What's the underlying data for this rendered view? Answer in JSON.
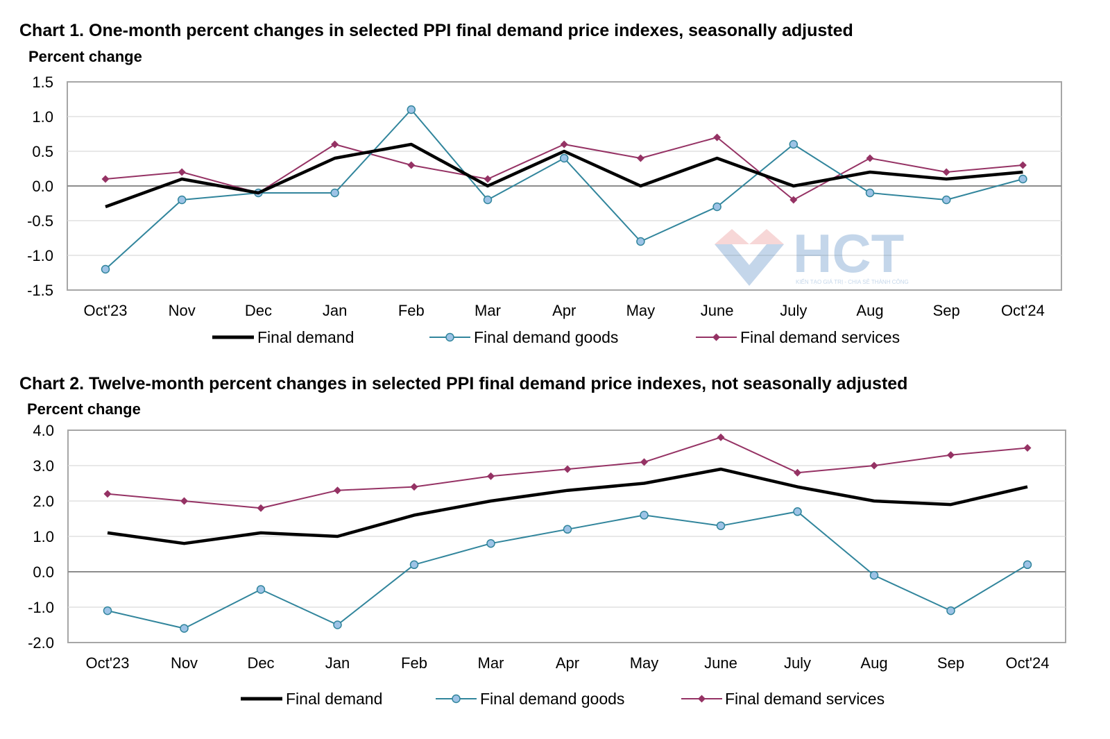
{
  "chart_data": [
    {
      "type": "line",
      "title": "Chart 1. One-month percent changes in selected PPI final demand price indexes, seasonally adjusted",
      "ylabel": "Percent change",
      "xlabel": "",
      "categories": [
        "Oct'23",
        "Nov",
        "Dec",
        "Jan",
        "Feb",
        "Mar",
        "Apr",
        "May",
        "June",
        "July",
        "Aug",
        "Sep",
        "Oct'24"
      ],
      "ylim": [
        -1.5,
        1.5
      ],
      "yticks": [
        1.5,
        1.0,
        0.5,
        0.0,
        -0.5,
        -1.0,
        -1.5
      ],
      "ytick_labels": [
        "1.5",
        "1.0",
        "0.5",
        "0.0",
        "-0.5",
        "-1.0",
        "-1.5"
      ],
      "grid": true,
      "legend": "bottom",
      "series": [
        {
          "name": "Final demand",
          "color": "#000000",
          "marker": "none",
          "values": [
            -0.3,
            0.1,
            -0.1,
            0.4,
            0.6,
            0.0,
            0.5,
            0.0,
            0.4,
            0.0,
            0.2,
            0.1,
            0.2
          ]
        },
        {
          "name": "Final demand goods",
          "color": "#31859C",
          "marker": "circle",
          "values": [
            -1.2,
            -0.2,
            -0.1,
            -0.1,
            1.1,
            -0.2,
            0.4,
            -0.8,
            -0.3,
            0.6,
            -0.1,
            -0.2,
            0.1
          ]
        },
        {
          "name": "Final demand services",
          "color": "#953264",
          "marker": "diamond",
          "values": [
            0.1,
            0.2,
            -0.1,
            0.6,
            0.3,
            0.1,
            0.6,
            0.4,
            0.7,
            -0.2,
            0.4,
            0.2,
            0.3
          ]
        }
      ]
    },
    {
      "type": "line",
      "title": "Chart 2. Twelve-month percent changes in selected PPI final demand price indexes, not seasonally adjusted",
      "ylabel": "Percent change",
      "xlabel": "",
      "categories": [
        "Oct'23",
        "Nov",
        "Dec",
        "Jan",
        "Feb",
        "Mar",
        "Apr",
        "May",
        "June",
        "July",
        "Aug",
        "Sep",
        "Oct'24"
      ],
      "ylim": [
        -2.0,
        4.0
      ],
      "yticks": [
        4.0,
        3.0,
        2.0,
        1.0,
        0.0,
        -1.0,
        -2.0
      ],
      "ytick_labels": [
        "4.0",
        "3.0",
        "2.0",
        "1.0",
        "0.0",
        "-1.0",
        "-2.0"
      ],
      "grid": true,
      "legend": "bottom",
      "series": [
        {
          "name": "Final demand",
          "color": "#000000",
          "marker": "none",
          "values": [
            1.1,
            0.8,
            1.1,
            1.0,
            1.6,
            2.0,
            2.3,
            2.5,
            2.9,
            2.4,
            2.0,
            1.9,
            2.4
          ]
        },
        {
          "name": "Final demand goods",
          "color": "#31859C",
          "marker": "circle",
          "values": [
            -1.1,
            -1.6,
            -0.5,
            -1.5,
            0.2,
            0.8,
            1.2,
            1.6,
            1.3,
            1.7,
            -0.1,
            -1.1,
            0.2
          ]
        },
        {
          "name": "Final demand services",
          "color": "#953264",
          "marker": "diamond",
          "values": [
            2.2,
            2.0,
            1.8,
            2.3,
            2.4,
            2.7,
            2.9,
            3.1,
            3.8,
            2.8,
            3.0,
            3.3,
            3.5
          ]
        }
      ]
    }
  ],
  "watermark": {
    "text": "HCT",
    "tagline": "KIẾN TẠO GIÁ TRỊ - CHIA SẺ THÀNH CÔNG",
    "icon": "diamond-logo-icon"
  }
}
